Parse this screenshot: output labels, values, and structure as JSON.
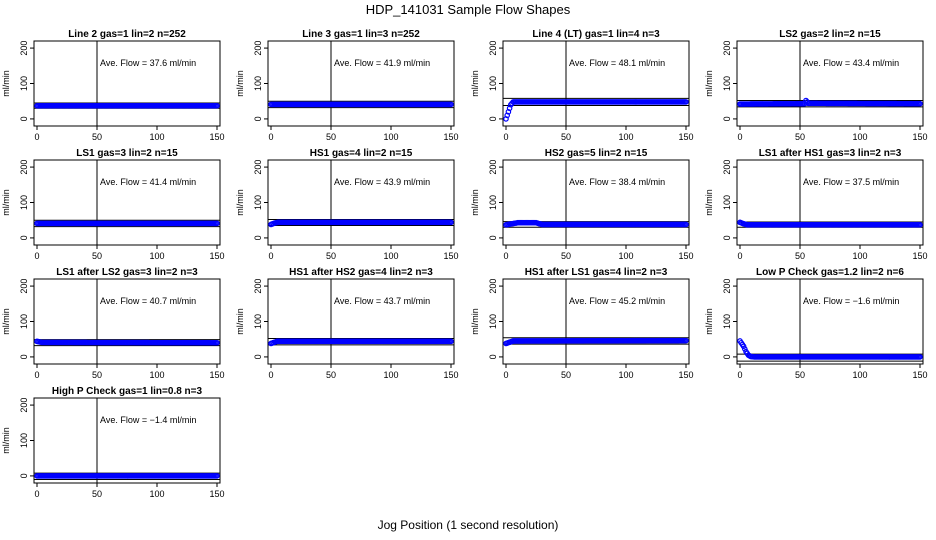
{
  "page": {
    "title": "HDP_141031  Sample Flow Shapes",
    "xlabel": "Jog Position (1 second resolution)",
    "colors": {
      "points": "#0000ff",
      "axis": "#000000"
    }
  },
  "chart_data": [
    {
      "type": "scatter",
      "title": "Line 2 gas=1 lin=2 n=252",
      "annotation": "Ave. Flow =  37.6  ml/min",
      "xlabel": "",
      "ylabel": "ml/min",
      "xlim": [
        0,
        150
      ],
      "ylim": [
        -20,
        220
      ],
      "xticks": [
        "0",
        "50",
        "100",
        "150"
      ],
      "yticks": [
        "0",
        "100",
        "200"
      ],
      "vline": 50,
      "hlines": [
        30,
        45
      ],
      "profile": [
        [
          0,
          37
        ],
        [
          150,
          37
        ]
      ],
      "ave": 37.6
    },
    {
      "type": "scatter",
      "title": "Line 3 gas=1 lin=3 n=252",
      "annotation": "Ave. Flow =  41.9  ml/min",
      "xlabel": "",
      "ylabel": "ml/min",
      "xlim": [
        0,
        150
      ],
      "ylim": [
        -20,
        220
      ],
      "xticks": [
        "0",
        "50",
        "100",
        "150"
      ],
      "yticks": [
        "0",
        "100",
        "200"
      ],
      "vline": 50,
      "hlines": [
        32,
        50
      ],
      "profile": [
        [
          0,
          41
        ],
        [
          150,
          41
        ]
      ],
      "ave": 41.9
    },
    {
      "type": "scatter",
      "title": "Line 4 (LT) gas=1 lin=4 n=3",
      "annotation": "Ave. Flow =  48.1  ml/min",
      "xlabel": "",
      "ylabel": "ml/min",
      "xlim": [
        0,
        150
      ],
      "ylim": [
        -20,
        220
      ],
      "xticks": [
        "0",
        "50",
        "100",
        "150"
      ],
      "yticks": [
        "0",
        "100",
        "200"
      ],
      "vline": 50,
      "hlines": [
        38,
        58
      ],
      "profile": [
        [
          0,
          0
        ],
        [
          2,
          20
        ],
        [
          4,
          40
        ],
        [
          6,
          48
        ],
        [
          150,
          48
        ]
      ],
      "ave": 48.1
    },
    {
      "type": "scatter",
      "title": "LS2 gas=2 lin=2 n=15",
      "annotation": "Ave. Flow =  43.4  ml/min",
      "xlabel": "",
      "ylabel": "ml/min",
      "xlim": [
        0,
        150
      ],
      "ylim": [
        -20,
        220
      ],
      "xticks": [
        "0",
        "50",
        "100",
        "150"
      ],
      "yticks": [
        "0",
        "100",
        "200"
      ],
      "vline": 50,
      "hlines": [
        34,
        52
      ],
      "profile": [
        [
          0,
          42
        ],
        [
          54,
          43
        ],
        [
          55,
          52
        ],
        [
          57,
          44
        ],
        [
          150,
          43
        ]
      ],
      "ave": 43.4
    },
    {
      "type": "scatter",
      "title": "LS1 gas=3 lin=2 n=15",
      "annotation": "Ave. Flow =  41.4  ml/min",
      "xlabel": "",
      "ylabel": "ml/min",
      "xlim": [
        0,
        150
      ],
      "ylim": [
        -20,
        220
      ],
      "xticks": [
        "0",
        "50",
        "100",
        "150"
      ],
      "yticks": [
        "0",
        "100",
        "200"
      ],
      "vline": 50,
      "hlines": [
        32,
        50
      ],
      "profile": [
        [
          0,
          41
        ],
        [
          150,
          41
        ]
      ],
      "ave": 41.4
    },
    {
      "type": "scatter",
      "title": "HS1 gas=4 lin=2 n=15",
      "annotation": "Ave. Flow =  43.9  ml/min",
      "xlabel": "",
      "ylabel": "ml/min",
      "xlim": [
        0,
        150
      ],
      "ylim": [
        -20,
        220
      ],
      "xticks": [
        "0",
        "50",
        "100",
        "150"
      ],
      "yticks": [
        "0",
        "100",
        "200"
      ],
      "vline": 50,
      "hlines": [
        35,
        52
      ],
      "profile": [
        [
          0,
          38
        ],
        [
          3,
          42
        ],
        [
          6,
          44
        ],
        [
          150,
          44
        ]
      ],
      "ave": 43.9
    },
    {
      "type": "scatter",
      "title": "HS2 gas=5 lin=2 n=15",
      "annotation": "Ave. Flow =  38.4  ml/min",
      "xlabel": "",
      "ylabel": "ml/min",
      "xlim": [
        0,
        150
      ],
      "ylim": [
        -20,
        220
      ],
      "xticks": [
        "0",
        "50",
        "100",
        "150"
      ],
      "yticks": [
        "0",
        "100",
        "200"
      ],
      "vline": 50,
      "hlines": [
        30,
        46
      ],
      "profile": [
        [
          0,
          37
        ],
        [
          10,
          43
        ],
        [
          25,
          43
        ],
        [
          30,
          38
        ],
        [
          150,
          38
        ]
      ],
      "ave": 38.4
    },
    {
      "type": "scatter",
      "title": "LS1 after HS1 gas=3 lin=2 n=3",
      "annotation": "Ave. Flow =  37.5  ml/min",
      "xlabel": "",
      "ylabel": "ml/min",
      "xlim": [
        0,
        150
      ],
      "ylim": [
        -20,
        220
      ],
      "xticks": [
        "0",
        "50",
        "100",
        "150"
      ],
      "yticks": [
        "0",
        "100",
        "200"
      ],
      "vline": 50,
      "hlines": [
        30,
        45
      ],
      "profile": [
        [
          0,
          44
        ],
        [
          3,
          40
        ],
        [
          6,
          37
        ],
        [
          150,
          37
        ]
      ],
      "ave": 37.5
    },
    {
      "type": "scatter",
      "title": "LS1 after LS2 gas=3 lin=2 n=3",
      "annotation": "Ave. Flow =  40.7  ml/min",
      "xlabel": "",
      "ylabel": "ml/min",
      "xlim": [
        0,
        150
      ],
      "ylim": [
        -20,
        220
      ],
      "xticks": [
        "0",
        "50",
        "100",
        "150"
      ],
      "yticks": [
        "0",
        "100",
        "200"
      ],
      "vline": 50,
      "hlines": [
        32,
        49
      ],
      "profile": [
        [
          0,
          44
        ],
        [
          4,
          41
        ],
        [
          150,
          40
        ]
      ],
      "ave": 40.7
    },
    {
      "type": "scatter",
      "title": "HS1 after HS2 gas=4 lin=2 n=3",
      "annotation": "Ave. Flow =  43.7  ml/min",
      "xlabel": "",
      "ylabel": "ml/min",
      "xlim": [
        0,
        150
      ],
      "ylim": [
        -20,
        220
      ],
      "xticks": [
        "0",
        "50",
        "100",
        "150"
      ],
      "yticks": [
        "0",
        "100",
        "200"
      ],
      "vline": 50,
      "hlines": [
        34,
        52
      ],
      "profile": [
        [
          0,
          38
        ],
        [
          5,
          44
        ],
        [
          150,
          44
        ]
      ],
      "ave": 43.7
    },
    {
      "type": "scatter",
      "title": "HS1 after LS1 gas=4 lin=2 n=3",
      "annotation": "Ave. Flow =  45.2  ml/min",
      "xlabel": "",
      "ylabel": "ml/min",
      "xlim": [
        0,
        150
      ],
      "ylim": [
        -20,
        220
      ],
      "xticks": [
        "0",
        "50",
        "100",
        "150"
      ],
      "yticks": [
        "0",
        "100",
        "200"
      ],
      "vline": 50,
      "hlines": [
        36,
        54
      ],
      "profile": [
        [
          0,
          38
        ],
        [
          6,
          45
        ],
        [
          150,
          46
        ]
      ],
      "ave": 45.2
    },
    {
      "type": "scatter",
      "title": "Low P Check gas=1.2 lin=2 n=6",
      "annotation": "Ave. Flow =  −1.6  ml/min",
      "xlabel": "",
      "ylabel": "ml/min",
      "xlim": [
        0,
        150
      ],
      "ylim": [
        -20,
        220
      ],
      "xticks": [
        "0",
        "50",
        "100",
        "150"
      ],
      "yticks": [
        "0",
        "100",
        "200"
      ],
      "vline": 50,
      "hlines": [
        -12,
        8
      ],
      "profile": [
        [
          0,
          45
        ],
        [
          3,
          30
        ],
        [
          5,
          15
        ],
        [
          7,
          5
        ],
        [
          9,
          1
        ],
        [
          12,
          0
        ],
        [
          150,
          0
        ]
      ],
      "ave": -1.6
    },
    {
      "type": "scatter",
      "title": "High P Check gas=1 lin=0.8 n=3",
      "annotation": "Ave. Flow =  −1.4  ml/min",
      "xlabel": "",
      "ylabel": "ml/min",
      "xlim": [
        0,
        150
      ],
      "ylim": [
        -20,
        220
      ],
      "xticks": [
        "0",
        "50",
        "100",
        "150"
      ],
      "yticks": [
        "0",
        "100",
        "200"
      ],
      "vline": 50,
      "hlines": [
        -10,
        8
      ],
      "profile": [
        [
          0,
          0
        ],
        [
          150,
          0
        ]
      ],
      "ave": -1.4
    }
  ]
}
